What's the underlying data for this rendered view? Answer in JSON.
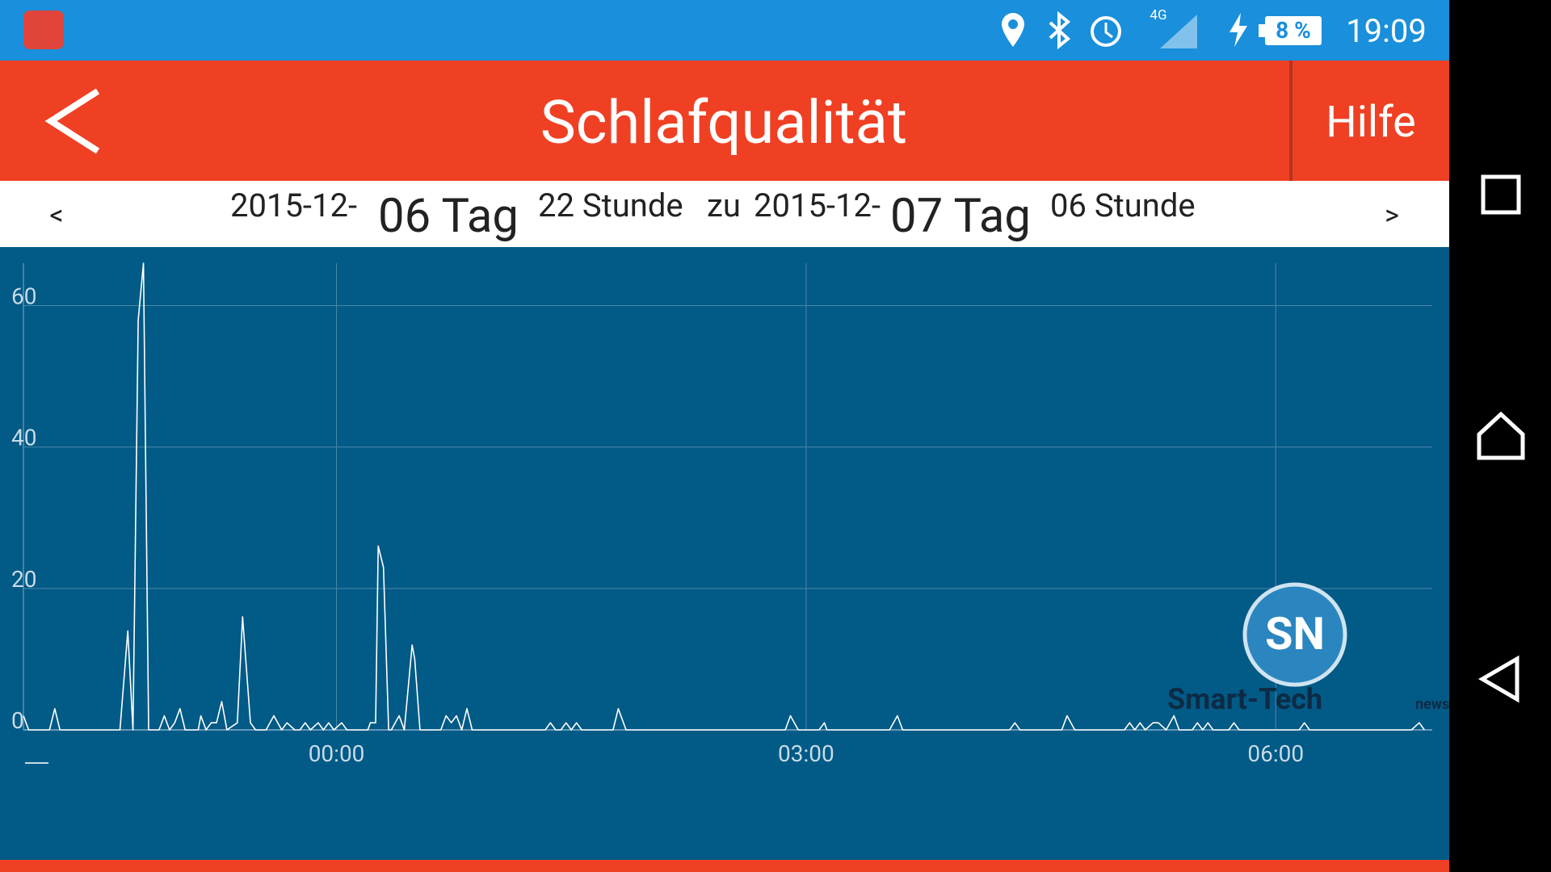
{
  "status_bar": {
    "network": "4G",
    "battery": "8 %",
    "time": "19:09"
  },
  "header": {
    "title": "Schlafqualität",
    "help": "Hilfe"
  },
  "date_range": {
    "prev": "<",
    "start_date": "2015-12-",
    "start_day": "06 Tag",
    "start_hour": "22 Stunde",
    "connector": "zu",
    "end_date": "2015-12-",
    "end_day": "07 Tag",
    "end_hour": "06 Stunde",
    "next": ">"
  },
  "watermark": {
    "logo": "SN",
    "brand": "Smart-Tech",
    "suffix": "news"
  },
  "chart_data": {
    "type": "line",
    "x": [
      0,
      2,
      10,
      12,
      14,
      37,
      40,
      42,
      44,
      46,
      48,
      52,
      54,
      56,
      58,
      60,
      62,
      67,
      68,
      70,
      72,
      74,
      76,
      78,
      82,
      84,
      87,
      89,
      93,
      96,
      99,
      101,
      104,
      106,
      108,
      110,
      113,
      115,
      117,
      119,
      122,
      124,
      132,
      133,
      135,
      136,
      138,
      140,
      141,
      144,
      146,
      149,
      150,
      152,
      160,
      162,
      164,
      166,
      168,
      170,
      172,
      200,
      202,
      204,
      206,
      208,
      210,
      212,
      214,
      226,
      228,
      231,
      292,
      294,
      297,
      305,
      307,
      308,
      332,
      335,
      337,
      378,
      380,
      382,
      398,
      400,
      403,
      422,
      424,
      426,
      428,
      430,
      433,
      435,
      438,
      441,
      443,
      448,
      450,
      452,
      454,
      456,
      462,
      464,
      466,
      489,
      491,
      493,
      532,
      535,
      537
    ],
    "series": [
      {
        "color": "#ffffff",
        "values": [
          2,
          0,
          0,
          3,
          0,
          0,
          14,
          0,
          58,
          66,
          0,
          0,
          2,
          0,
          1,
          3,
          0,
          0,
          2,
          0,
          1,
          1,
          4,
          0,
          1,
          16,
          1,
          0,
          0,
          2,
          0,
          1,
          0,
          0,
          1,
          0,
          1,
          0,
          1,
          0,
          1,
          0,
          0,
          1,
          1,
          26,
          23,
          0,
          0,
          2,
          0,
          12,
          10,
          0,
          0,
          2,
          1,
          2,
          0,
          3,
          0,
          0,
          1,
          0,
          0,
          1,
          0,
          1,
          0,
          0,
          3,
          0,
          0,
          2,
          0,
          0,
          1,
          0,
          0,
          2,
          0,
          0,
          1,
          0,
          0,
          2,
          0,
          0,
          1,
          0,
          1,
          0,
          1,
          1,
          0,
          2,
          0,
          0,
          1,
          0,
          1,
          0,
          0,
          1,
          0,
          0,
          1,
          0,
          0,
          1,
          0
        ]
      }
    ],
    "xlim": [
      0,
      540
    ],
    "xticks": [
      {
        "value": 120,
        "label": "00:00"
      },
      {
        "value": 300,
        "label": "03:00"
      },
      {
        "value": 480,
        "label": "06:00"
      }
    ],
    "ylim": [
      0,
      66
    ],
    "yticks": [
      0,
      20,
      40,
      60
    ],
    "grid": true
  }
}
